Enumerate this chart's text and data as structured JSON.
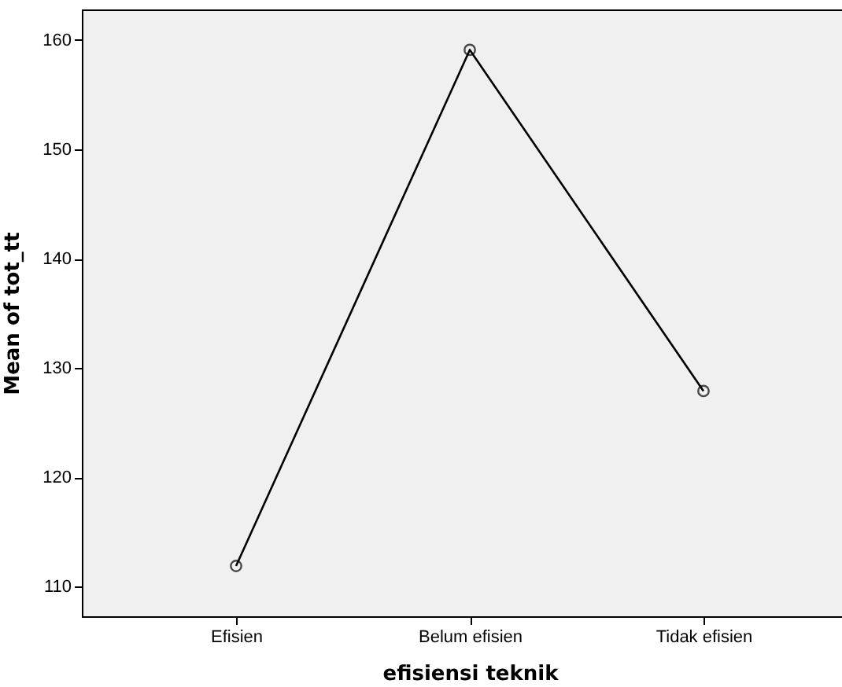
{
  "chart_data": {
    "type": "line",
    "xlabel": "efisiensi teknik",
    "ylabel": "Mean of tot_tt",
    "categories": [
      "Efisien",
      "Belum efisien",
      "Tidak efisien"
    ],
    "series": [
      {
        "color": "#000000",
        "values": [
          111.9,
          159.1,
          127.9
        ]
      }
    ],
    "ylim": [
      107.3,
      162.8
    ],
    "yticks": [
      110,
      120,
      130,
      140,
      150,
      160
    ],
    "grid": false,
    "marker": "circle",
    "line_style": "solid"
  }
}
